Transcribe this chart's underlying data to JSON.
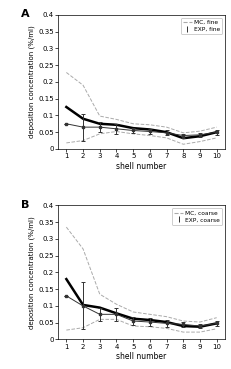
{
  "shell_numbers": [
    1,
    2,
    3,
    4,
    5,
    6,
    7,
    8,
    9,
    10
  ],
  "fine_mc_mean": [
    0.125,
    0.09,
    0.075,
    0.072,
    0.062,
    0.058,
    0.05,
    0.032,
    0.038,
    0.05
  ],
  "fine_mc_upper": [
    0.228,
    0.19,
    0.098,
    0.088,
    0.075,
    0.072,
    0.065,
    0.048,
    0.053,
    0.065
  ],
  "fine_mc_lower": [
    0.018,
    0.025,
    0.045,
    0.052,
    0.045,
    0.04,
    0.033,
    0.014,
    0.022,
    0.033
  ],
  "fine_exp_mean": [
    0.075,
    0.065,
    0.065,
    0.06,
    0.055,
    0.052,
    0.048,
    0.04,
    0.042,
    0.05
  ],
  "fine_exp_err": [
    0.0,
    0.04,
    0.015,
    0.015,
    0.008,
    0.008,
    0.007,
    0.006,
    0.007,
    0.007
  ],
  "coarse_mc_mean": [
    0.18,
    0.103,
    0.095,
    0.078,
    0.062,
    0.058,
    0.052,
    0.04,
    0.038,
    0.048
  ],
  "coarse_mc_upper": [
    0.335,
    0.27,
    0.135,
    0.105,
    0.082,
    0.075,
    0.068,
    0.055,
    0.052,
    0.065
  ],
  "coarse_mc_lower": [
    0.028,
    0.035,
    0.06,
    0.06,
    0.04,
    0.038,
    0.033,
    0.022,
    0.022,
    0.032
  ],
  "coarse_exp_mean": [
    0.13,
    0.1,
    0.075,
    0.075,
    0.055,
    0.052,
    0.048,
    0.045,
    0.04,
    0.048
  ],
  "coarse_exp_err": [
    0.0,
    0.07,
    0.02,
    0.02,
    0.012,
    0.012,
    0.01,
    0.008,
    0.006,
    0.007
  ],
  "ylim": [
    0,
    0.4
  ],
  "yticks": [
    0,
    0.05,
    0.1,
    0.15,
    0.2,
    0.25,
    0.3,
    0.35,
    0.4
  ],
  "ytick_labels": [
    "0",
    "0.05",
    "0.1",
    "0.15",
    "0.2",
    "0.25",
    "0.3",
    "0.35",
    "0.4"
  ],
  "xlabel": "shell number",
  "ylabel": "deposition concentration (%/ml)",
  "mc_color": "#aaaaaa",
  "exp_color": "#333333",
  "mc_mean_color": "#000000",
  "label_A": "A",
  "label_B": "B",
  "legend_fine": [
    "MC, fine",
    "EXP, fine"
  ],
  "legend_coarse": [
    "MC, coarse",
    "EXP, coarse"
  ]
}
